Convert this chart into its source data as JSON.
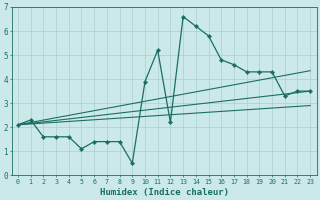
{
  "xlabel": "Humidex (Indice chaleur)",
  "ylabel": "",
  "xlim": [
    -0.5,
    23.5
  ],
  "ylim": [
    0,
    7
  ],
  "xticks": [
    0,
    1,
    2,
    3,
    4,
    5,
    6,
    7,
    8,
    9,
    10,
    11,
    12,
    13,
    14,
    15,
    16,
    17,
    18,
    19,
    20,
    21,
    22,
    23
  ],
  "yticks": [
    0,
    1,
    2,
    3,
    4,
    5,
    6,
    7
  ],
  "background_color": "#cce9e9",
  "grid_color": "#aacfcf",
  "line_color": "#1a6e64",
  "series1_x": [
    0,
    1,
    2,
    3,
    4,
    5,
    6,
    7,
    8,
    9,
    10,
    11,
    12,
    13,
    14,
    15,
    16,
    17,
    18,
    19,
    20,
    21,
    22,
    23
  ],
  "series1_y": [
    2.1,
    2.3,
    1.6,
    1.6,
    1.6,
    1.1,
    1.4,
    1.4,
    1.4,
    0.5,
    3.9,
    5.2,
    2.2,
    6.6,
    6.2,
    5.8,
    4.8,
    4.6,
    4.3,
    4.3,
    4.3,
    3.3,
    3.5,
    3.5
  ],
  "line2_x": [
    0,
    23
  ],
  "line2_y": [
    2.1,
    4.35
  ],
  "line3_x": [
    0,
    23
  ],
  "line3_y": [
    2.1,
    3.5
  ],
  "line4_x": [
    0,
    23
  ],
  "line4_y": [
    2.1,
    2.9
  ]
}
